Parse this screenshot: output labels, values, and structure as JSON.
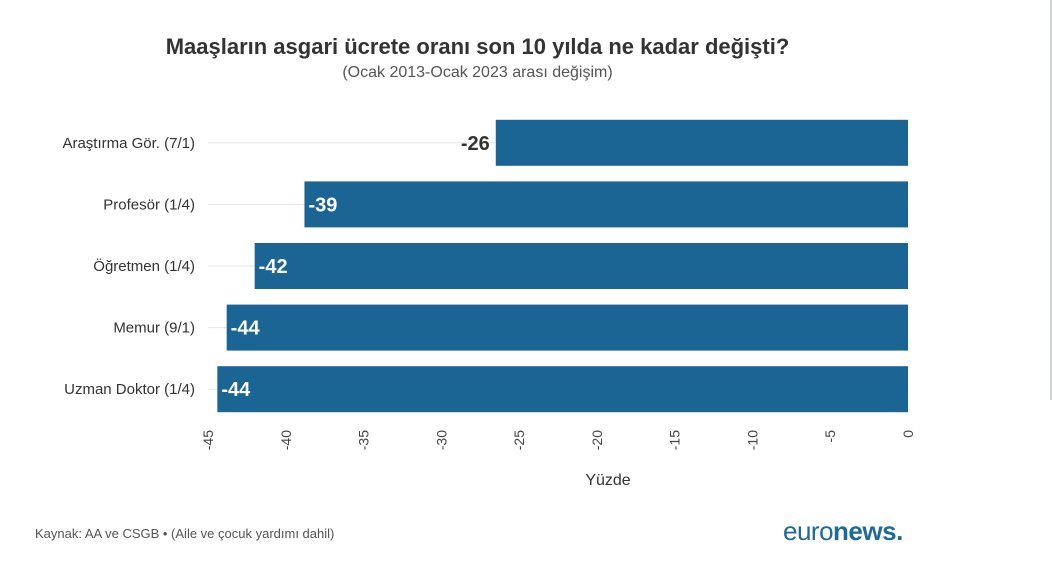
{
  "title": "Maaşların asgari ücrete oranı son 10 yılda ne kadar değişti?",
  "subtitle": "(Ocak 2013-Ocak 2023 arası değişim)",
  "source": "Kaynak: AA ve CSGB • (Aile ve çocuk yardımı dahil)",
  "logo": {
    "light": "euro",
    "bold": "news",
    "dot": "."
  },
  "watermark": "euronews.",
  "colors": {
    "bar": "#1b6594",
    "logo": "#1d6a99",
    "grid": "#e6e6e6",
    "text": "#333333"
  },
  "chart_data": {
    "type": "bar",
    "orientation": "horizontal",
    "categories": [
      "Araştırma Gör. (7/1)",
      "Profesör (1/4)",
      "Öğretmen (1/4)",
      "Memur (9/1)",
      "Uzman Doktor (1/4)"
    ],
    "values": [
      -26.5,
      -38.8,
      -42,
      -43.8,
      -44.4
    ],
    "data_labels": [
      "-26",
      "-39",
      "-42",
      "-44",
      "-44"
    ],
    "xlabel": "Yüzde",
    "ylabel": "",
    "xlim": [
      -45,
      0
    ],
    "xticks": [
      -45,
      -40,
      -35,
      -30,
      -25,
      -20,
      -15,
      -10,
      -5,
      0
    ],
    "xtick_labels": [
      "-45",
      "-40",
      "-35",
      "-30",
      "-25",
      "-20",
      "-15",
      "-10",
      "-5",
      "0"
    ],
    "grid": true
  }
}
